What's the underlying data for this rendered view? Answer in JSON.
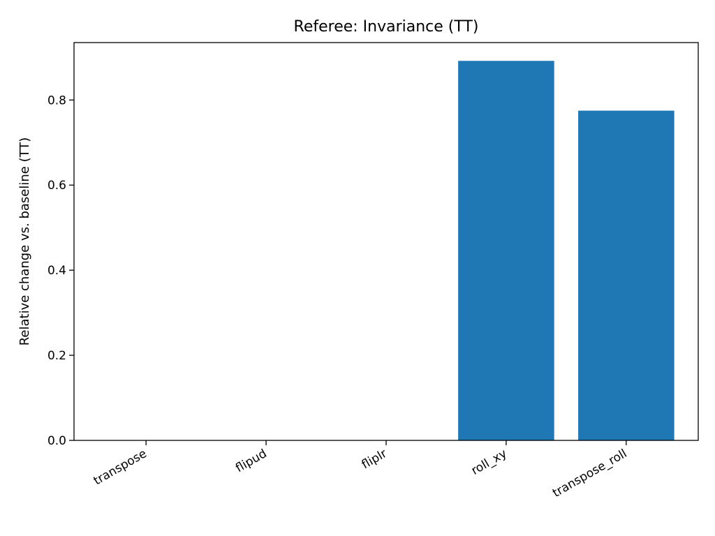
{
  "chart_data": {
    "type": "bar",
    "title": "Referee: Invariance (TT)",
    "xlabel": "",
    "ylabel": "Relative change vs. baseline (TT)",
    "categories": [
      "transpose",
      "flipud",
      "fliplr",
      "roll_xy",
      "transpose_roll"
    ],
    "values": [
      0.0,
      0.0,
      0.0,
      0.892,
      0.775
    ],
    "ylim": [
      0,
      0.935
    ],
    "yticks": [
      "0.0",
      "0.2",
      "0.4",
      "0.6",
      "0.8"
    ],
    "bar_color": "#1f77b4",
    "grid": false,
    "legend": "none"
  }
}
